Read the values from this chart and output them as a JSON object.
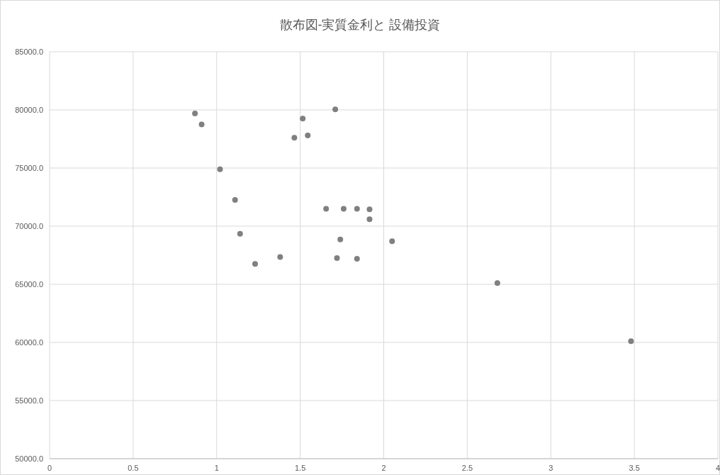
{
  "chart_data": {
    "type": "scatter",
    "title": "散布図-実質金利と 設備投資",
    "x": [
      0.87,
      0.91,
      1.02,
      1.11,
      1.14,
      1.23,
      1.38,
      1.465,
      1.515,
      1.545,
      1.71,
      1.655,
      1.76,
      1.84,
      1.915,
      1.915,
      1.74,
      1.72,
      1.84,
      2.05,
      2.68,
      3.48
    ],
    "series": [
      {
        "color": "#808080",
        "values": [
          79700,
          78750,
          74900,
          72250,
          69350,
          66750,
          67350,
          77600,
          79250,
          77800,
          80050,
          71500,
          71500,
          71500,
          71450,
          70600,
          68850,
          67250,
          67200,
          68700,
          65100,
          60100
        ]
      }
    ],
    "xlim": [
      0,
      4
    ],
    "xticks": [
      0,
      0.5,
      1,
      1.5,
      2,
      2.5,
      3,
      3.5,
      4
    ],
    "ylim": [
      50000,
      85000
    ],
    "yticks": [
      {
        "value": 50000,
        "label": "50000.0"
      },
      {
        "value": 55000,
        "label": "55000.0"
      },
      {
        "value": 60000,
        "label": "60000.0"
      },
      {
        "value": 65000,
        "label": "65000.0"
      },
      {
        "value": 70000,
        "label": "70000.0"
      },
      {
        "value": 75000,
        "label": "75000.0"
      },
      {
        "value": 80000,
        "label": "80000.0"
      },
      {
        "value": 85000,
        "label": "85000.0"
      }
    ],
    "grid": true,
    "marker": "circle"
  }
}
